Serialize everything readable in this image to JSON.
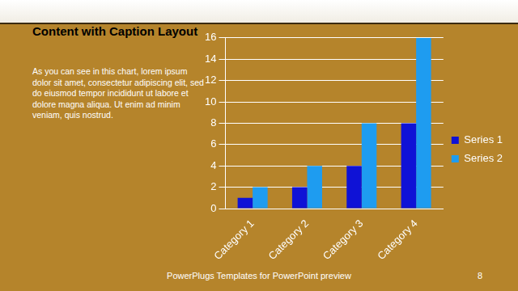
{
  "slide": {
    "title": "Content with Caption Layout",
    "caption": "As you can see in this chart, lorem ipsum dolor sit amet, consectetur adipiscing elit, sed do eiusmod tempor incididunt ut labore et dolore magna aliqua. Ut enim ad minim veniam, quis nostrud.",
    "footer": "PowerPlugs Templates for PowerPoint preview",
    "page_number": 8
  },
  "chart_data": {
    "type": "bar",
    "categories": [
      "Category 1",
      "Category 2",
      "Category 3",
      "Category 4"
    ],
    "series": [
      {
        "name": "Series 1",
        "color": "#0f12d6",
        "values": [
          1,
          2,
          4,
          8
        ]
      },
      {
        "name": "Series 2",
        "color": "#1e9cf0",
        "values": [
          2,
          4,
          8,
          16
        ]
      }
    ],
    "ylim": [
      0,
      16
    ],
    "yticks": [
      0,
      2,
      4,
      6,
      8,
      10,
      12,
      14,
      16
    ],
    "grid": true,
    "legend": "right"
  }
}
